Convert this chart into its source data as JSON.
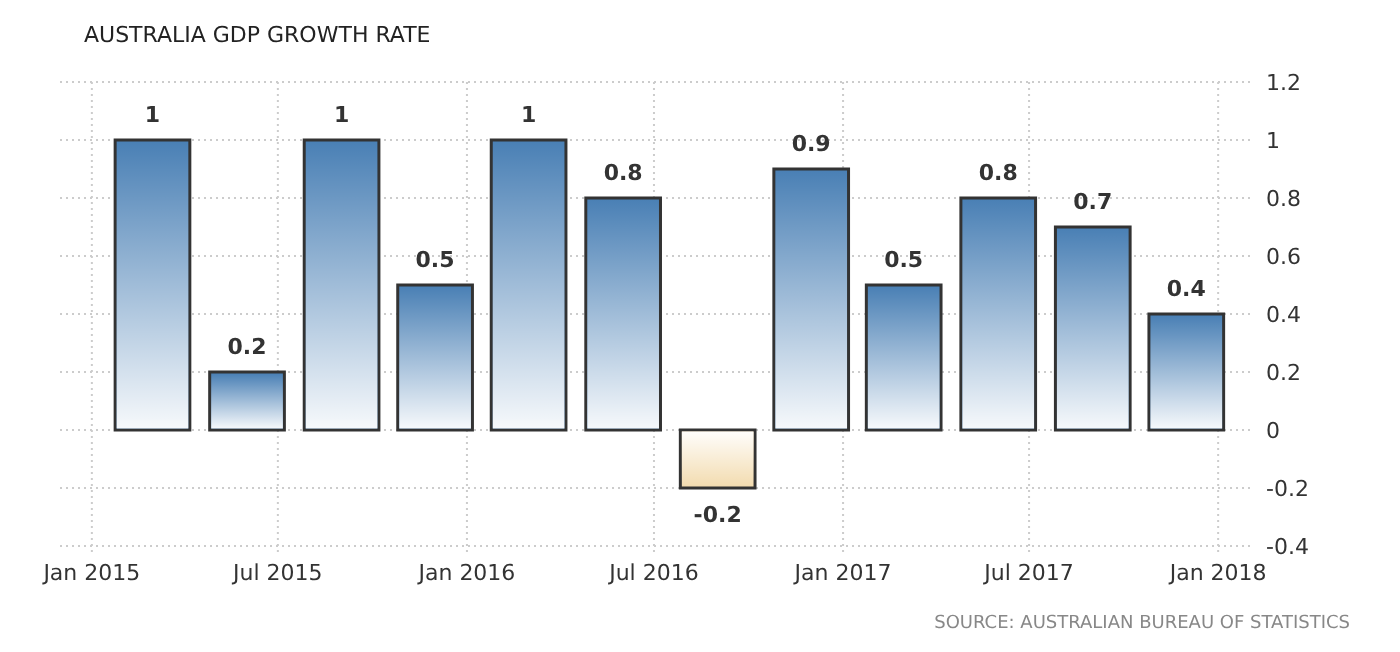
{
  "chart_data": {
    "type": "bar",
    "title": "AUSTRALIA GDP GROWTH RATE",
    "x": [
      "2015-03",
      "2015-06",
      "2015-09",
      "2015-12",
      "2016-03",
      "2016-06",
      "2016-09",
      "2016-12",
      "2017-03",
      "2017-06",
      "2017-09",
      "2017-12"
    ],
    "values": [
      1,
      0.2,
      1,
      0.5,
      1,
      0.8,
      -0.2,
      0.9,
      0.5,
      0.8,
      0.7,
      0.4
    ],
    "colors": [
      "#4a80b5",
      "#4a80b5",
      "#4a80b5",
      "#4a80b5",
      "#4a80b5",
      "#4a80b5",
      "#f3dcb0",
      "#4a80b5",
      "#4a80b5",
      "#4a80b5",
      "#4a80b5",
      "#4a80b5"
    ],
    "data_labels": true,
    "xlim": [
      "2014-12",
      "2018-02"
    ],
    "xticks": [
      {
        "value": "2015-01",
        "label": "Jan 2015"
      },
      {
        "value": "2015-07",
        "label": "Jul 2015"
      },
      {
        "value": "2016-01",
        "label": "Jan 2016"
      },
      {
        "value": "2016-07",
        "label": "Jul 2016"
      },
      {
        "value": "2017-01",
        "label": "Jan 2017"
      },
      {
        "value": "2017-07",
        "label": "Jul 2017"
      },
      {
        "value": "2018-01",
        "label": "Jan 2018"
      }
    ],
    "ylim": [
      -0.4,
      1.2
    ],
    "yticks": [
      1.2,
      1,
      0.8,
      0.6,
      0.4,
      0.2,
      0,
      -0.2,
      -0.4
    ],
    "grid": true,
    "annotations": [
      "SOURCE: AUSTRALIAN BUREAU OF STATISTICS"
    ]
  }
}
